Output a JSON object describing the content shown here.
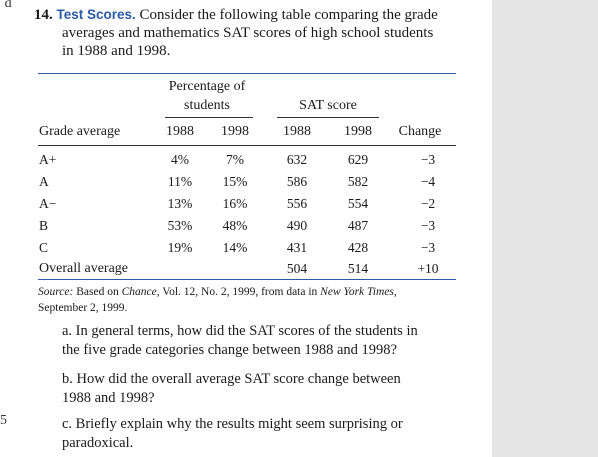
{
  "edge_fragments": {
    "top_left": "ˆd",
    "bottom_left": "5"
  },
  "problem": {
    "number": "14.",
    "title": "Test Scores.",
    "intro_line1": "Consider the following table comparing the grade",
    "intro_line2": "averages and mathematics SAT scores of high school students",
    "intro_line3": "in 1988 and 1998."
  },
  "table": {
    "group_header_pct_line1": "Percentage of",
    "group_header_pct_line2": "students",
    "group_header_sat": "SAT score",
    "columns": [
      "Grade average",
      "1988",
      "1998",
      "1988",
      "1998",
      "Change"
    ],
    "rows": [
      [
        "A+",
        "4%",
        "7%",
        "632",
        "629",
        "−3"
      ],
      [
        "A",
        "11%",
        "15%",
        "586",
        "582",
        "−4"
      ],
      [
        "A−",
        "13%",
        "16%",
        "556",
        "554",
        "−2"
      ],
      [
        "B",
        "53%",
        "48%",
        "490",
        "487",
        "−3"
      ],
      [
        "C",
        "19%",
        "14%",
        "431",
        "428",
        "−3"
      ]
    ],
    "overall": {
      "label": "Overall average",
      "sat_1988": "504",
      "sat_1998": "514",
      "change": "+10"
    }
  },
  "source": {
    "label": "Source:",
    "text_a": " Based on ",
    "journal": "Chance",
    "text_b": ", Vol. 12, No. 2, 1999, from data in ",
    "newspaper": "New York Times",
    "text_c": ",",
    "line2": "September 2, 1999."
  },
  "questions": {
    "a_line1": "a. In general terms, how did the SAT scores of the students in",
    "a_line2": "the five grade categories change between 1988 and 1998?",
    "b_line1": "b. How did the overall average SAT score change between",
    "b_line2": "1988 and 1998?",
    "c_line1": "c. Briefly explain why the results might seem surprising or",
    "c_line2": "paradoxical."
  }
}
